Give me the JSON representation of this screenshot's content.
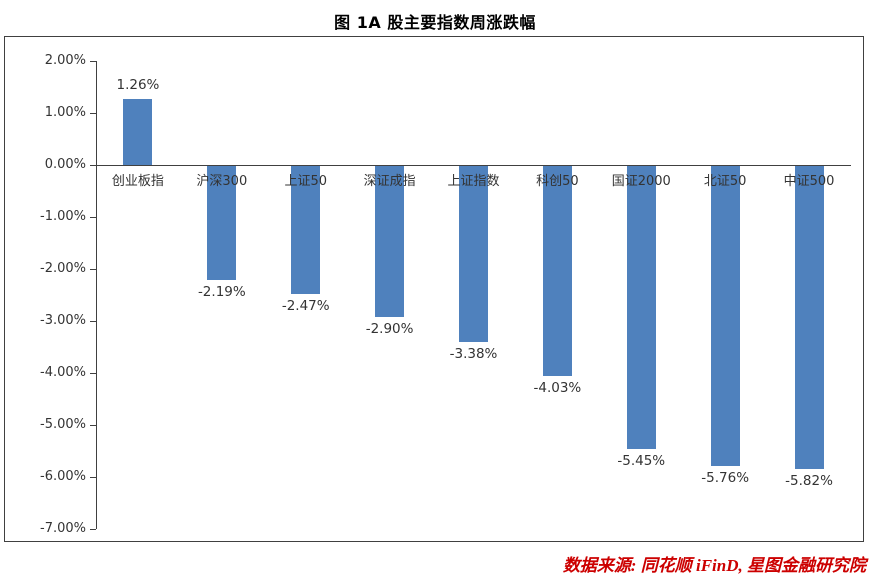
{
  "title": "图 1A 股主要指数周涨跌幅",
  "source": "数据来源: 同花顺 iFinD, 星图金融研究院",
  "colors": {
    "bar": "#4f81bd",
    "axis": "#404040",
    "text": "#333333",
    "source_text": "#cc0000"
  },
  "chart_data": {
    "type": "bar",
    "title": "图 1A 股主要指数周涨跌幅",
    "categories": [
      "创业板指",
      "沪深300",
      "上证50",
      "深证成指",
      "上证指数",
      "科创50",
      "国证2000",
      "北证50",
      "中证500"
    ],
    "values": [
      1.26,
      -2.19,
      -2.47,
      -2.9,
      -3.38,
      -4.03,
      -5.45,
      -5.76,
      -5.82
    ],
    "value_labels": [
      "1.26%",
      "-2.19%",
      "-2.47%",
      "-2.90%",
      "-3.38%",
      "-4.03%",
      "-5.45%",
      "-5.76%",
      "-5.82%"
    ],
    "xlabel": "",
    "ylabel": "",
    "ylim": [
      -7,
      2
    ],
    "ytick_step": 1,
    "ytick_labels": [
      "2.00%",
      "1.00%",
      "0.00%",
      "-1.00%",
      "-2.00%",
      "-3.00%",
      "-4.00%",
      "-5.00%",
      "-6.00%",
      "-7.00%"
    ],
    "grid": false,
    "legend": "none",
    "bar_color": "#4f81bd"
  }
}
